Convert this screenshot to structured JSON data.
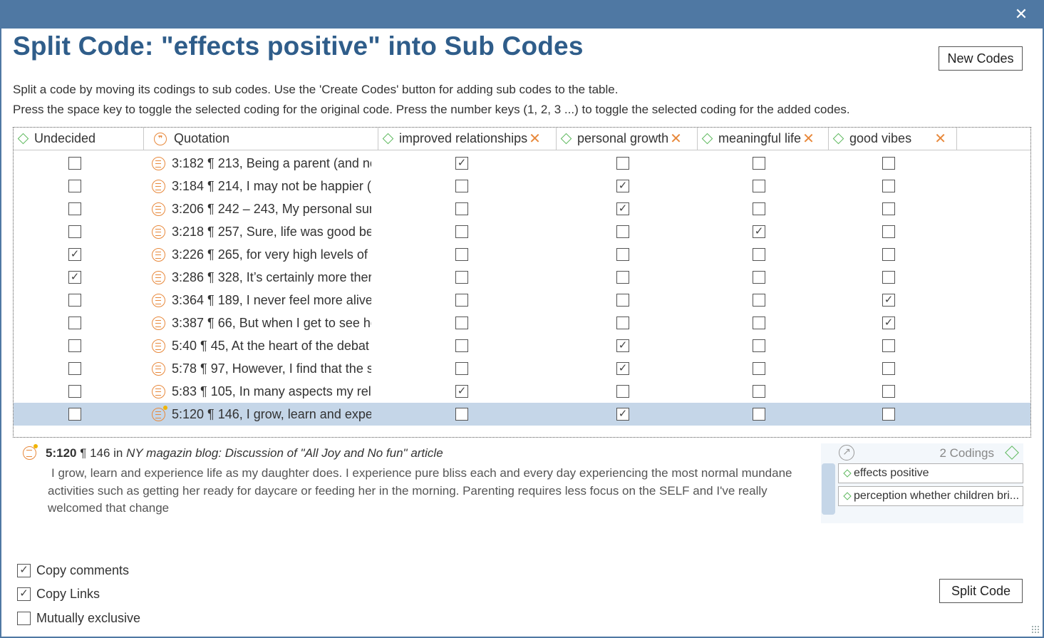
{
  "window": {
    "close_glyph": "✕"
  },
  "dialog": {
    "title": "Split Code: \"effects positive\" into Sub Codes",
    "new_codes_label": "New Codes",
    "instructions": [
      "Split a code by moving its codings to sub codes. Use the 'Create Codes' button for adding sub codes to the table.",
      "Press the space key to toggle the selected coding for the original code. Press the number keys (1, 2, 3 ...) to toggle the selected coding for the added codes."
    ]
  },
  "table": {
    "columns": [
      {
        "label": "Undecided",
        "icon": "code-diamond-icon",
        "removable": false
      },
      {
        "label": "Quotation",
        "icon": "quotation-icon",
        "removable": false
      },
      {
        "label": "improved relationships",
        "icon": "code-diamond-icon",
        "removable": true
      },
      {
        "label": "personal growth",
        "icon": "code-diamond-icon",
        "removable": true
      },
      {
        "label": "meaningful life",
        "icon": "code-diamond-icon",
        "removable": true
      },
      {
        "label": "good vibes",
        "icon": "code-diamond-icon",
        "removable": true
      }
    ],
    "remove_glyph": "✕",
    "quote_glyph": "❞",
    "rows": [
      {
        "quotation": "3:182 ¶ 213, Being a parent (and nc",
        "undecided": false,
        "checks": [
          true,
          false,
          false,
          false
        ],
        "selected": false
      },
      {
        "quotation": "3:184 ¶ 214, I may not be happier (",
        "undecided": false,
        "checks": [
          false,
          true,
          false,
          false
        ],
        "selected": false
      },
      {
        "quotation": "3:206 ¶ 242 – 243, My personal sun",
        "undecided": false,
        "checks": [
          false,
          true,
          false,
          false
        ],
        "selected": false
      },
      {
        "quotation": "3:218 ¶ 257, Sure, life was good be",
        "undecided": false,
        "checks": [
          false,
          false,
          true,
          false
        ],
        "selected": false
      },
      {
        "quotation": "3:226 ¶ 265, for very high levels of",
        "undecided": true,
        "checks": [
          false,
          false,
          false,
          false
        ],
        "selected": false
      },
      {
        "quotation": "3:286 ¶ 328, It’s certainly more ther",
        "undecided": true,
        "checks": [
          false,
          false,
          false,
          false
        ],
        "selected": false
      },
      {
        "quotation": "3:364 ¶ 189, I never feel more alive",
        "undecided": false,
        "checks": [
          false,
          false,
          false,
          true
        ],
        "selected": false
      },
      {
        "quotation": "3:387 ¶ 66, But when I get to see hc",
        "undecided": false,
        "checks": [
          false,
          false,
          false,
          true
        ],
        "selected": false
      },
      {
        "quotation": "5:40 ¶ 45, At the heart of the debat",
        "undecided": false,
        "checks": [
          false,
          true,
          false,
          false
        ],
        "selected": false
      },
      {
        "quotation": "5:78 ¶ 97, However, I find that the s",
        "undecided": false,
        "checks": [
          false,
          true,
          false,
          false
        ],
        "selected": false
      },
      {
        "quotation": "5:83 ¶ 105, In many aspects my rela",
        "undecided": false,
        "checks": [
          true,
          false,
          false,
          false
        ],
        "selected": false
      },
      {
        "quotation": "5:120 ¶ 146, I grow, learn and expe",
        "undecided": false,
        "checks": [
          false,
          true,
          false,
          false
        ],
        "selected": true,
        "has_comment": true
      }
    ]
  },
  "check_glyph": "✓",
  "preview": {
    "quotation_id": "5:120",
    "location": "¶ 146 in",
    "document": "NY magazin blog: Discussion of \"All Joy and No fun\" article",
    "text": "I grow, learn and experience life as my daughter does. I experience pure bliss each and every day experiencing the most normal mundane activities such as getting her ready for daycare or feeding her in the morning. Parenting requires less focus on the SELF and I've really welcomed that change",
    "link_glyph": "↗",
    "codings_count": "2 Codings",
    "codings": [
      "effects positive",
      "perception whether children bri..."
    ]
  },
  "options": [
    {
      "label": "Copy comments",
      "checked": true
    },
    {
      "label": "Copy Links",
      "checked": true
    },
    {
      "label": "Mutually exclusive",
      "checked": false
    }
  ],
  "split_code_label": "Split Code"
}
